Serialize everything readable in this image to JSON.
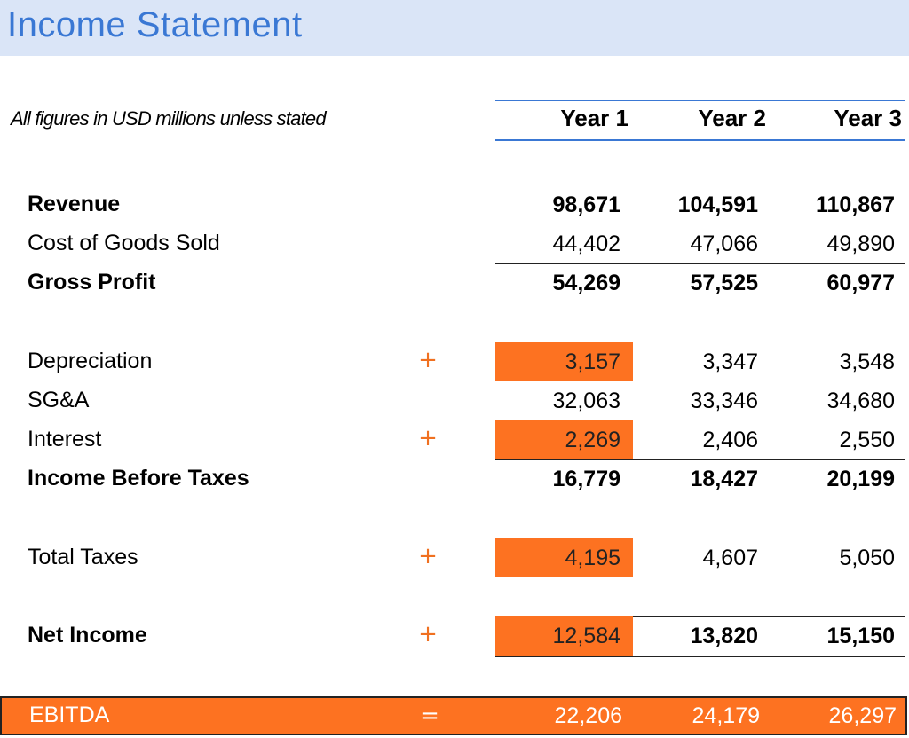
{
  "title": "Income Statement",
  "subtitle": "All figures in USD millions unless stated",
  "columns": [
    "Year 1",
    "Year 2",
    "Year 3"
  ],
  "colors": {
    "title_band": "#dae5f7",
    "title_text": "#3a78d4",
    "highlight": "#fd7221",
    "operator": "#f07020"
  },
  "rows": [
    {
      "label": "Revenue",
      "op": "",
      "values": [
        "98,671",
        "104,591",
        "110,867"
      ]
    },
    {
      "label": "Cost of Goods Sold",
      "op": "",
      "values": [
        "44,402",
        "47,066",
        "49,890"
      ]
    },
    {
      "label": "Gross Profit",
      "op": "",
      "values": [
        "54,269",
        "57,525",
        "60,977"
      ]
    },
    {
      "label": "Depreciation",
      "op": "+",
      "values": [
        "3,157",
        "3,347",
        "3,548"
      ]
    },
    {
      "label": "SG&A",
      "op": "",
      "values": [
        "32,063",
        "33,346",
        "34,680"
      ]
    },
    {
      "label": "Interest",
      "op": "+",
      "values": [
        "2,269",
        "2,406",
        "2,550"
      ]
    },
    {
      "label": "Income Before Taxes",
      "op": "",
      "values": [
        "16,779",
        "18,427",
        "20,199"
      ]
    },
    {
      "label": "Total Taxes",
      "op": "+",
      "values": [
        "4,195",
        "4,607",
        "5,050"
      ]
    },
    {
      "label": "Net Income",
      "op": "+",
      "values": [
        "12,584",
        "13,820",
        "15,150"
      ]
    },
    {
      "label": "EBITDA",
      "op": "=",
      "values": [
        "22,206",
        "24,179",
        "26,297"
      ]
    }
  ]
}
